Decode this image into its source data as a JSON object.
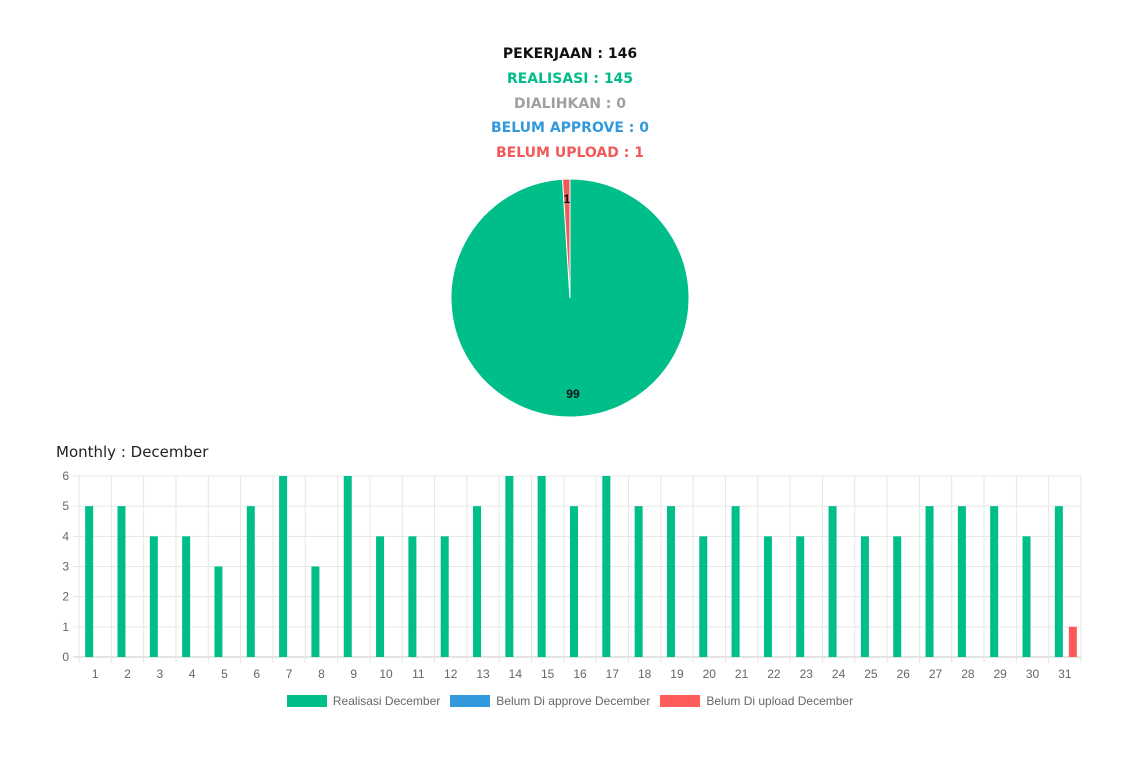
{
  "summary": {
    "pekerjaan": "PEKERJAAN : 146",
    "realisasi": "REALISASI : 145",
    "dialihkan": "DIALIHKAN : 0",
    "belum_approve": "BELUM APPROVE : 0",
    "belum_upload": "BELUM UPLOAD : 1"
  },
  "colors": {
    "realisasi": "#00BE89",
    "dialihkan": "#A0A0A0",
    "belum_approve": "#3399DD",
    "belum_upload": "#F05A5A",
    "pekerjaan": "#111111"
  },
  "monthly_title": "Monthly : December",
  "chart_data": [
    {
      "type": "pie",
      "slices": [
        {
          "label": "Realisasi",
          "value": 99,
          "color": "#00BE89"
        },
        {
          "label": "Belum upload",
          "value": 1,
          "color": "#F05A5A"
        }
      ]
    },
    {
      "type": "bar",
      "categories": [
        "1",
        "2",
        "3",
        "4",
        "5",
        "6",
        "7",
        "8",
        "9",
        "10",
        "11",
        "12",
        "13",
        "14",
        "15",
        "16",
        "17",
        "18",
        "19",
        "20",
        "21",
        "22",
        "23",
        "24",
        "25",
        "26",
        "27",
        "28",
        "29",
        "30",
        "31"
      ],
      "series": [
        {
          "name": "Realisasi December",
          "color": "#00BE89",
          "values": [
            5,
            5,
            4,
            4,
            3,
            5,
            6,
            3,
            6,
            4,
            4,
            4,
            5,
            6,
            6,
            5,
            6,
            5,
            5,
            4,
            5,
            4,
            4,
            5,
            4,
            4,
            5,
            5,
            5,
            4,
            5
          ]
        },
        {
          "name": "Belum Di approve December",
          "color": "#3399DD",
          "values": [
            0,
            0,
            0,
            0,
            0,
            0,
            0,
            0,
            0,
            0,
            0,
            0,
            0,
            0,
            0,
            0,
            0,
            0,
            0,
            0,
            0,
            0,
            0,
            0,
            0,
            0,
            0,
            0,
            0,
            0,
            0
          ]
        },
        {
          "name": "Belum Di upload December",
          "color": "#FF5A5A",
          "values": [
            0,
            0,
            0,
            0,
            0,
            0,
            0,
            0,
            0,
            0,
            0,
            0,
            0,
            0,
            0,
            0,
            0,
            0,
            0,
            0,
            0,
            0,
            0,
            0,
            0,
            0,
            0,
            0,
            0,
            0,
            1
          ]
        }
      ],
      "ylim": [
        0,
        6
      ],
      "yticks": [
        0,
        1,
        2,
        3,
        4,
        5,
        6
      ],
      "grid": true,
      "legend": "bottom"
    }
  ]
}
